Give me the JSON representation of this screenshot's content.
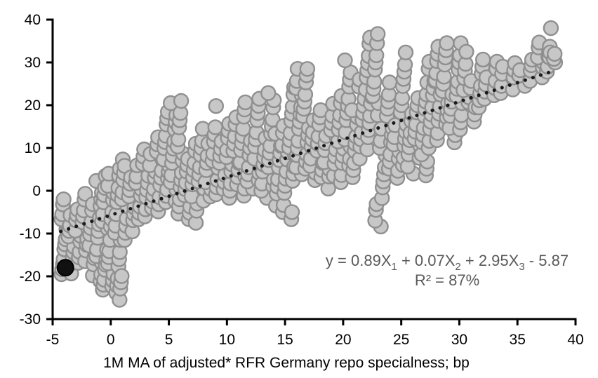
{
  "chart_data": {
    "type": "scatter",
    "title": "",
    "xlabel": "1M MA of adjusted* RFR Germany repo specialness; bp",
    "ylabel": "",
    "xlim": [
      -5,
      40
    ],
    "ylim": [
      -30,
      40
    ],
    "x_ticks": [
      -5,
      0,
      5,
      10,
      15,
      20,
      25,
      30,
      35,
      40
    ],
    "y_ticks": [
      40,
      30,
      20,
      10,
      0,
      -10,
      -20,
      -30
    ],
    "grid": false,
    "legend": "none",
    "colors": {
      "axis": "#000000",
      "marker_fill": "#c7c7c7",
      "marker_stroke": "#8f8f8f",
      "trendline": "#1a1a1a",
      "highlight": "#111111",
      "annotation": "#595959"
    },
    "trendline": {
      "style": "dotted",
      "x1": -4.3,
      "y1": -9.5,
      "x2": 38.2,
      "y2": 28.1
    },
    "highlight_point": {
      "x": -3.9,
      "y": -18
    },
    "annotation": {
      "line1_segments": [
        {
          "text": "y = 0.89X"
        },
        {
          "text": "1",
          "subscript": true
        },
        {
          "text": " + 0.07X"
        },
        {
          "text": "2",
          "subscript": true
        },
        {
          "text": " + 2.95X"
        },
        {
          "text": "3",
          "subscript": true
        },
        {
          "text": " - 5.87"
        }
      ],
      "line2": "R² = 87%"
    },
    "points_columns": [
      {
        "x": -4.0,
        "ys": [
          -20,
          -18.5,
          -17,
          -15.5,
          -14,
          -12.5,
          -11,
          -9.5,
          -8,
          -6.5,
          -5,
          -3.5,
          -2
        ]
      },
      {
        "x": -3.4,
        "ys": [
          -19,
          -17.4,
          -15.8,
          -14.2,
          -12.6,
          -11,
          -9.4,
          -7.8,
          -6.2
        ]
      },
      {
        "x": -2.8,
        "ys": [
          -17,
          -15.4,
          -13.8,
          -12.2,
          -10.6,
          -9,
          -7.4,
          -5.8,
          -4.2
        ]
      },
      {
        "x": -2.2,
        "ys": [
          -16,
          -14.3,
          -12.6,
          -10.9,
          -9.2,
          -7.5,
          -5.8,
          -4.1,
          -2.4,
          -0.7
        ]
      },
      {
        "x": -1.6,
        "ys": [
          -19.5,
          -17.7,
          -15.9,
          -14.1,
          -12.3,
          -10.5,
          -8.7,
          -6.9,
          -5.1,
          -3.3
        ]
      },
      {
        "x": -1.0,
        "ys": [
          -21,
          -19.1,
          -17.2,
          -15.3,
          -13.4,
          -11.5,
          -9.6,
          -7.7,
          -5.8,
          -3.9,
          -2,
          -0.1,
          1.8
        ]
      },
      {
        "x": -0.5,
        "ys": [
          -23.3,
          -21.8,
          -20.3,
          -18.8,
          -17.3,
          -15.8,
          -14.3,
          -9,
          -7,
          -5,
          -3,
          -1,
          1,
          3
        ]
      },
      {
        "x": 0.0,
        "ys": [
          -22.5,
          -20.8,
          -19,
          -17.3,
          -15.5,
          -13.8,
          -12,
          -8.5,
          -6.5,
          -4.5,
          -2.5,
          -0.5,
          1.5,
          3.5
        ]
      },
      {
        "x": 0.6,
        "ys": [
          -24,
          -22,
          -20,
          -18,
          -16,
          -14,
          -12,
          -10,
          -8,
          -5,
          -3,
          -1,
          1,
          3,
          5
        ]
      },
      {
        "x": 0.8,
        "ys": [
          7.5
        ]
      },
      {
        "x": 1.0,
        "ys": [
          -25,
          -23.2,
          -21.4,
          -19.6
        ]
      },
      {
        "x": 1.2,
        "ys": [
          -12,
          -10,
          -8,
          -6,
          -4,
          -2,
          0,
          2,
          4,
          6
        ]
      },
      {
        "x": 1.8,
        "ys": [
          -9,
          -7.2,
          -5.4,
          -3.6,
          -1.8,
          0,
          1.8,
          3.6
        ]
      },
      {
        "x": 2.4,
        "ys": [
          -7,
          -5.2,
          -3.4,
          -1.6,
          0.2,
          2,
          3.8,
          5.6
        ]
      },
      {
        "x": 3.0,
        "ys": [
          -6,
          -4,
          -2,
          0,
          2,
          4,
          6,
          8,
          10
        ]
      },
      {
        "x": 3.6,
        "ys": [
          -4.5,
          -2.7,
          -0.9,
          0.9,
          2.7,
          4.5,
          6.3,
          8.1
        ]
      },
      {
        "x": 4.2,
        "ys": [
          -5,
          -3,
          -1,
          1,
          3,
          5,
          7,
          9,
          11,
          13
        ]
      },
      {
        "x": 4.8,
        "ys": [
          -3,
          -1.2,
          0.6,
          2.4,
          4.2,
          6,
          7.8,
          9.6,
          11.4,
          13.2,
          15,
          16.8,
          18.6
        ]
      },
      {
        "x": 5.4,
        "ys": [
          -2,
          0,
          2,
          4,
          6,
          8,
          10,
          12,
          14,
          16,
          18,
          20
        ]
      },
      {
        "x": 6.0,
        "ys": [
          -5.5,
          -3.5,
          -1.5,
          0.5,
          2.5,
          4.5,
          6.5,
          8.5,
          10.5,
          12.5,
          14.5,
          16.5,
          18.5,
          20.5
        ]
      },
      {
        "x": 6.6,
        "ys": [
          -6.8,
          -5,
          -3.2,
          -1.4,
          0.4,
          2.2,
          4,
          5.8,
          7.6
        ]
      },
      {
        "x": 7.2,
        "ys": [
          -7,
          -5,
          -3,
          -1,
          1,
          3,
          5,
          7,
          9,
          11
        ]
      },
      {
        "x": 7.8,
        "ys": [
          -2,
          0,
          2,
          4,
          6,
          8,
          10,
          12,
          14
        ]
      },
      {
        "x": 8.4,
        "ys": [
          -1.5,
          0.5,
          2.5,
          4.5,
          6.5,
          8.5,
          10.5
        ]
      },
      {
        "x": 9.0,
        "ys": [
          -1,
          1,
          3,
          5,
          7,
          9,
          11,
          13,
          15,
          20.3
        ]
      },
      {
        "x": 9.6,
        "ys": [
          0,
          2,
          4,
          6,
          8,
          10,
          12
        ]
      },
      {
        "x": 10.2,
        "ys": [
          -2,
          0,
          2,
          4,
          6,
          8,
          10,
          12,
          14,
          16
        ]
      },
      {
        "x": 10.8,
        "ys": [
          1,
          3,
          5,
          7,
          9,
          11,
          13,
          15,
          17
        ]
      },
      {
        "x": 11.4,
        "ys": [
          -1,
          1,
          3,
          5,
          7,
          9,
          11,
          13,
          15,
          17,
          19,
          21
        ]
      },
      {
        "x": 12.0,
        "ys": [
          0,
          2,
          4,
          6,
          8,
          10,
          12
        ]
      },
      {
        "x": 12.6,
        "ys": [
          2,
          4,
          6,
          8,
          10,
          12,
          14,
          16,
          18,
          20,
          22
        ]
      },
      {
        "x": 13.2,
        "ys": [
          -2,
          0,
          2,
          4,
          6,
          8,
          10,
          12
        ]
      },
      {
        "x": 13.8,
        "ys": [
          1,
          3,
          5,
          7,
          9,
          11,
          13,
          15,
          17,
          19,
          21,
          23
        ]
      },
      {
        "x": 14.4,
        "ys": [
          -3,
          -1,
          1,
          3,
          5,
          7,
          9,
          11,
          13
        ]
      },
      {
        "x": 15.0,
        "ys": [
          -5,
          -3,
          -1,
          1,
          3,
          5,
          7,
          9,
          11,
          13,
          15
        ]
      },
      {
        "x": 15.6,
        "ys": [
          -6.5,
          -4.5,
          2,
          4,
          6,
          8,
          10,
          12,
          14,
          16,
          18,
          20,
          22,
          24
        ]
      },
      {
        "x": 16.2,
        "ys": [
          4,
          6,
          8,
          10,
          12,
          14,
          16,
          18,
          20,
          22,
          24,
          26,
          28
        ]
      },
      {
        "x": 16.8,
        "ys": [
          5,
          7,
          9,
          11,
          13,
          15,
          17,
          19,
          21,
          23,
          25,
          27,
          28.8
        ]
      },
      {
        "x": 17.4,
        "ys": [
          2,
          4,
          6,
          8,
          10,
          12,
          14,
          16
        ]
      },
      {
        "x": 18.0,
        "ys": [
          3,
          5,
          7,
          9,
          11,
          13,
          15,
          17,
          19
        ]
      },
      {
        "x": 18.6,
        "ys": [
          1,
          3,
          5,
          7,
          9,
          11,
          13
        ]
      },
      {
        "x": 19.2,
        "ys": [
          4,
          6,
          8,
          10,
          12,
          14,
          16,
          18,
          20
        ]
      },
      {
        "x": 19.8,
        "ys": [
          2,
          4,
          6,
          8,
          10,
          12,
          14,
          16,
          18,
          20,
          22
        ]
      },
      {
        "x": 20.4,
        "ys": [
          6,
          8,
          10,
          12,
          14,
          16,
          18,
          20,
          22,
          24,
          26,
          28,
          30
        ]
      },
      {
        "x": 21.0,
        "ys": [
          3,
          5,
          7,
          9,
          11,
          13,
          15,
          17,
          19
        ]
      },
      {
        "x": 21.6,
        "ys": [
          8,
          10,
          12,
          14,
          16,
          18,
          20,
          22,
          24,
          26
        ]
      },
      {
        "x": 22.2,
        "ys": [
          10,
          12,
          14,
          16,
          18,
          20,
          22,
          24,
          26,
          28,
          30,
          32,
          34,
          35.8
        ]
      },
      {
        "x": 22.8,
        "ys": [
          18,
          20,
          22,
          24,
          26,
          28,
          30,
          32,
          34,
          36.5
        ]
      },
      {
        "x": 23.0,
        "ys": [
          -8.2,
          -6.5,
          -4.8,
          -3.1
        ]
      },
      {
        "x": 23.4,
        "ys": [
          -1.4,
          0.3,
          2,
          4,
          6,
          8,
          10,
          12,
          14
        ]
      },
      {
        "x": 24.0,
        "ys": [
          5,
          7,
          9,
          11,
          13,
          15,
          17,
          19,
          21,
          23,
          25
        ]
      },
      {
        "x": 24.6,
        "ys": [
          3,
          5,
          7,
          9,
          11,
          13,
          15
        ]
      },
      {
        "x": 25.2,
        "ys": [
          6,
          8,
          10,
          12,
          14,
          16,
          18,
          20,
          22,
          24,
          26,
          28,
          30,
          32
        ]
      },
      {
        "x": 25.8,
        "ys": [
          4,
          6,
          8,
          10,
          12,
          14,
          16,
          18
        ]
      },
      {
        "x": 26.4,
        "ys": [
          8,
          10,
          12,
          14,
          16,
          18,
          20,
          22
        ]
      },
      {
        "x": 27.0,
        "ys": [
          3.1,
          5,
          7,
          9,
          11,
          13,
          15,
          17,
          19,
          21,
          23,
          25
        ]
      },
      {
        "x": 27.6,
        "ys": [
          10,
          12,
          14,
          16,
          18,
          20,
          22,
          24,
          26,
          28,
          30
        ]
      },
      {
        "x": 28.2,
        "ys": [
          12,
          14,
          16,
          18,
          20,
          22,
          24,
          26,
          28,
          30,
          32,
          34
        ]
      },
      {
        "x": 28.8,
        "ys": [
          15,
          17,
          19,
          21,
          23,
          25,
          27,
          29,
          31,
          33,
          35
        ]
      },
      {
        "x": 29.4,
        "ys": [
          11,
          13,
          15,
          17,
          19,
          21,
          23
        ]
      },
      {
        "x": 30.0,
        "ys": [
          14,
          16,
          18,
          20,
          22,
          24,
          26,
          28,
          30,
          32,
          34
        ]
      },
      {
        "x": 30.6,
        "ys": [
          20.5,
          22,
          24,
          26,
          28,
          30,
          32
        ]
      },
      {
        "x": 31.2,
        "ys": [
          16,
          18,
          20,
          22,
          24,
          26
        ]
      },
      {
        "x": 31.8,
        "ys": [
          19,
          21,
          23,
          25,
          27,
          29,
          31
        ]
      },
      {
        "x": 32.4,
        "ys": [
          21,
          23,
          25,
          27
        ]
      },
      {
        "x": 33.0,
        "ys": [
          22,
          24,
          26,
          28,
          30
        ]
      },
      {
        "x": 33.8,
        "ys": [
          23,
          25,
          27,
          29
        ]
      },
      {
        "x": 34.6,
        "ys": [
          24,
          26,
          28,
          30
        ]
      },
      {
        "x": 35.4,
        "ys": [
          25,
          26.6,
          28.2
        ]
      },
      {
        "x": 36.2,
        "ys": [
          26,
          27.6,
          29.2,
          30.8
        ]
      },
      {
        "x": 37.0,
        "ys": [
          27,
          28.5,
          30,
          31.5,
          33,
          34.5
        ]
      },
      {
        "x": 37.6,
        "ys": [
          28,
          29.5,
          31,
          32.5,
          34
        ]
      },
      {
        "x": 38.0,
        "ys": [
          29.5,
          31,
          32.5,
          38.5
        ]
      },
      {
        "x": 38.2,
        "ys": [
          30.5,
          32
        ]
      }
    ]
  }
}
